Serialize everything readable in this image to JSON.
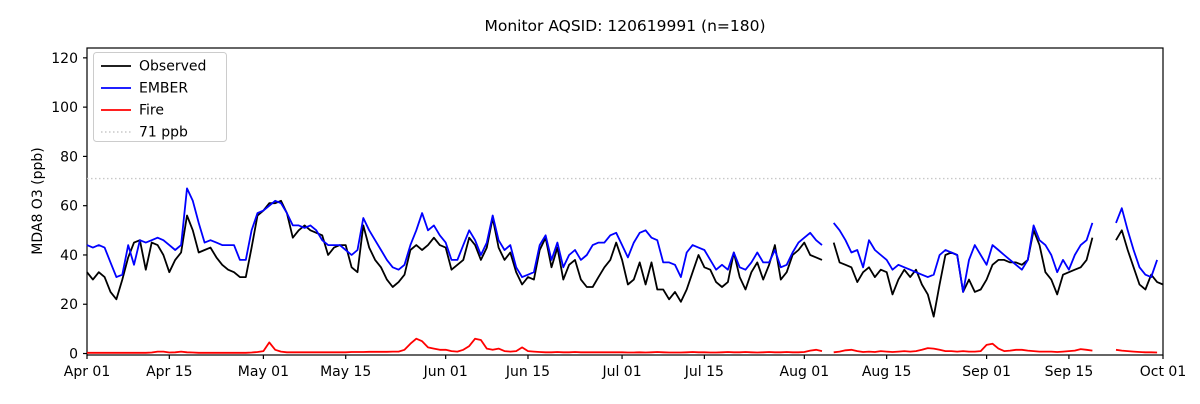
{
  "chart_data": {
    "type": "line",
    "title": "Monitor AQSID: 120619991 (n=180)",
    "ylabel": "MDA8 O3 (ppb)",
    "ylim": [
      -0.6,
      124
    ],
    "y_ticks": [
      0,
      20,
      40,
      60,
      80,
      100,
      120
    ],
    "x_start_date": "Apr 01",
    "x_end_date": "Oct 01",
    "n_days": 184,
    "x_tick_labels": [
      "Apr 01",
      "Apr 15",
      "May 01",
      "May 15",
      "Jun 01",
      "Jun 15",
      "Jul 01",
      "Jul 15",
      "Aug 01",
      "Aug 15",
      "Sep 01",
      "Sep 15",
      "Oct 01"
    ],
    "x_tick_day_indices": [
      0,
      14,
      30,
      44,
      61,
      75,
      91,
      105,
      122,
      136,
      153,
      167,
      183
    ],
    "grid": false,
    "legend_position": "upper-left",
    "threshold_line": {
      "value": 71,
      "label": "71 ppb",
      "color": "#c8c8c8",
      "style": "dotted"
    },
    "series": [
      {
        "name": "Observed",
        "color": "#000000",
        "style": "solid",
        "values": [
          33,
          30,
          33,
          31,
          25,
          22,
          30,
          39,
          45,
          46,
          34,
          45,
          44,
          40,
          33,
          38,
          41,
          56,
          50,
          41,
          42,
          43,
          39,
          36,
          34,
          33,
          31,
          31,
          43,
          56,
          58,
          61,
          61,
          62,
          57,
          47,
          50,
          52,
          50,
          49,
          48,
          40,
          43,
          44,
          44,
          35,
          33,
          52,
          43,
          38,
          35,
          30,
          27,
          29,
          32,
          42,
          44,
          42,
          44,
          47,
          44,
          43,
          34,
          36,
          38,
          47,
          44,
          38,
          43,
          55,
          43,
          38,
          41,
          33,
          28,
          31,
          30,
          42,
          47,
          35,
          43,
          30,
          36,
          38,
          30,
          27,
          27,
          31,
          35,
          38,
          45,
          38,
          28,
          30,
          37,
          28,
          37,
          26,
          26,
          22,
          25,
          21,
          26,
          33,
          40,
          35,
          34,
          29,
          27,
          29,
          41,
          31,
          26,
          33,
          37,
          30,
          36,
          44,
          30,
          33,
          40,
          42,
          45,
          40,
          39,
          38,
          null,
          45,
          37,
          36,
          35,
          29,
          33,
          35,
          31,
          34,
          33,
          24,
          30,
          34,
          31,
          34,
          28,
          24,
          15,
          28,
          40,
          41,
          40,
          25,
          30,
          25,
          26,
          30,
          36,
          38,
          38,
          37,
          37,
          36,
          38,
          50,
          44,
          33,
          30,
          24,
          32,
          33,
          34,
          35,
          38,
          47,
          null,
          null,
          null,
          46,
          50,
          42,
          35,
          28,
          26,
          32,
          29,
          28
        ]
      },
      {
        "name": "EMBER",
        "color": "#0000ff",
        "style": "solid",
        "values": [
          44,
          43,
          44,
          43,
          37,
          31,
          32,
          44,
          36,
          46,
          45,
          46,
          47,
          46,
          44,
          42,
          44,
          67,
          62,
          53,
          45,
          46,
          45,
          44,
          44,
          44,
          38,
          38,
          50,
          57,
          58,
          60,
          62,
          61,
          57,
          52,
          52,
          51,
          52,
          50,
          46,
          44,
          44,
          44,
          42,
          40,
          42,
          55,
          50,
          46,
          42,
          38,
          35,
          34,
          36,
          44,
          50,
          57,
          50,
          52,
          48,
          45,
          38,
          38,
          44,
          50,
          46,
          40,
          45,
          56,
          46,
          42,
          44,
          35,
          31,
          32,
          33,
          44,
          48,
          38,
          45,
          35,
          40,
          42,
          38,
          40,
          44,
          45,
          45,
          48,
          49,
          44,
          39,
          45,
          49,
          50,
          47,
          46,
          37,
          37,
          36,
          31,
          41,
          44,
          43,
          42,
          38,
          34,
          36,
          34,
          41,
          35,
          34,
          37,
          41,
          37,
          37,
          42,
          35,
          36,
          41,
          45,
          47,
          49,
          46,
          44,
          null,
          53,
          50,
          46,
          41,
          42,
          35,
          46,
          42,
          40,
          38,
          34,
          36,
          35,
          34,
          33,
          32,
          31,
          32,
          40,
          42,
          41,
          40,
          25,
          38,
          44,
          40,
          36,
          44,
          42,
          40,
          38,
          36,
          34,
          38,
          52,
          46,
          44,
          40,
          33,
          38,
          34,
          40,
          44,
          46,
          53,
          null,
          null,
          null,
          53,
          59,
          50,
          42,
          35,
          32,
          31,
          38,
          null
        ]
      },
      {
        "name": "Fire",
        "color": "#ff0000",
        "style": "solid",
        "values": [
          0.3,
          0.3,
          0.3,
          0.3,
          0.3,
          0.3,
          0.3,
          0.3,
          0.3,
          0.3,
          0.3,
          0.4,
          0.8,
          0.8,
          0.4,
          0.5,
          0.8,
          0.5,
          0.4,
          0.3,
          0.3,
          0.3,
          0.3,
          0.3,
          0.3,
          0.3,
          0.3,
          0.3,
          0.4,
          0.6,
          1.0,
          4.5,
          1.5,
          0.8,
          0.5,
          0.5,
          0.5,
          0.5,
          0.5,
          0.5,
          0.5,
          0.5,
          0.5,
          0.5,
          0.5,
          0.6,
          0.6,
          0.6,
          0.7,
          0.7,
          0.7,
          0.7,
          0.8,
          0.8,
          1.5,
          4.0,
          6.0,
          5.0,
          2.5,
          2.0,
          1.5,
          1.5,
          1.0,
          0.8,
          1.5,
          3.0,
          6.0,
          5.5,
          2.0,
          1.5,
          2.0,
          1.0,
          0.8,
          1.0,
          2.5,
          1.0,
          0.8,
          0.6,
          0.5,
          0.5,
          0.6,
          0.5,
          0.5,
          0.6,
          0.5,
          0.5,
          0.5,
          0.5,
          0.5,
          0.5,
          0.5,
          0.5,
          0.4,
          0.4,
          0.5,
          0.4,
          0.5,
          0.6,
          0.5,
          0.4,
          0.4,
          0.4,
          0.5,
          0.6,
          0.5,
          0.5,
          0.4,
          0.4,
          0.5,
          0.6,
          0.5,
          0.5,
          0.6,
          0.5,
          0.4,
          0.5,
          0.6,
          0.5,
          0.5,
          0.6,
          0.5,
          0.5,
          0.6,
          1.2,
          1.5,
          1.0,
          null,
          0.5,
          0.8,
          1.3,
          1.5,
          1.0,
          0.6,
          0.8,
          0.6,
          1.0,
          0.8,
          0.6,
          0.8,
          1.0,
          0.8,
          1.0,
          1.5,
          2.2,
          2.0,
          1.5,
          1.0,
          1.0,
          0.8,
          1.0,
          0.8,
          0.8,
          1.0,
          3.5,
          4.0,
          2.0,
          1.0,
          1.2,
          1.5,
          1.5,
          1.2,
          1.0,
          0.8,
          0.8,
          0.8,
          0.6,
          0.8,
          1.0,
          1.2,
          1.8,
          1.5,
          1.2,
          null,
          null,
          null,
          1.5,
          1.2,
          1.0,
          0.8,
          0.6,
          0.5,
          0.5,
          0.4,
          null
        ]
      }
    ]
  }
}
